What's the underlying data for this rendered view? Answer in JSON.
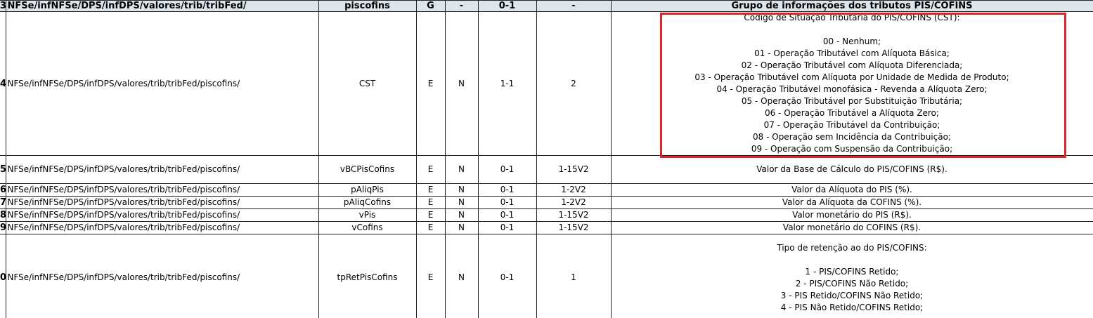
{
  "table": {
    "header": {
      "row_number": "3",
      "cells": [
        "NFSe/infNFSe/DPS/infDPS/valores/trib/tribFed/",
        "piscofins",
        "G",
        "-",
        "0-1",
        "-",
        "Grupo de informações dos tributos PIS/COFINS"
      ]
    },
    "rows": [
      {
        "row_number": "4",
        "cells": [
          "NFSe/infNFSe/DPS/infDPS/valores/trib/tribFed/piscofins/",
          "CST",
          "E",
          "N",
          "1-1",
          "2"
        ],
        "description_title": "Codigo de Situação Tributaria do PIS/COFINS (CST):",
        "description_items": [
          "00 - Nenhum;",
          "01 - Operação Tributável com Alíquota Básica;",
          "02 - Operação Tributável com Alíquota Diferenciada;",
          "03 - Operação Tributável com Alíquota por Unidade de Medida de Produto;",
          "04 - Operação Tributável monofásica - Revenda a Alíquota Zero;",
          "05 - Operação Tributável por Substituição Tributária;",
          "06 - Operação Tributável a Alíquota Zero;",
          "07 - Operação Tributável da Contribuição;",
          "08 - Operação sem Incidência da Contribuição;",
          "09 - Operação com Suspensão da Contribuição;"
        ]
      },
      {
        "row_number": "5",
        "cells": [
          "NFSe/infNFSe/DPS/infDPS/valores/trib/tribFed/piscofins/",
          "vBCPisCofins",
          "E",
          "N",
          "0-1",
          "1-15V2"
        ],
        "description": "Valor da Base de Cálculo do PIS/COFINS (R$)."
      },
      {
        "row_number": "6",
        "cells": [
          "NFSe/infNFSe/DPS/infDPS/valores/trib/tribFed/piscofins/",
          "pAliqPis",
          "E",
          "N",
          "0-1",
          "1-2V2"
        ],
        "description": "Valor da Alíquota do PIS (%)."
      },
      {
        "row_number": "7",
        "cells": [
          "NFSe/infNFSe/DPS/infDPS/valores/trib/tribFed/piscofins/",
          "pAliqCofins",
          "E",
          "N",
          "0-1",
          "1-2V2"
        ],
        "description": "Valor da Alíquota da COFINS (%)."
      },
      {
        "row_number": "8",
        "cells": [
          "NFSe/infNFSe/DPS/infDPS/valores/trib/tribFed/piscofins/",
          "vPis",
          "E",
          "N",
          "0-1",
          "1-15V2"
        ],
        "description": "Valor monetário do PIS (R$)."
      },
      {
        "row_number": "9",
        "cells": [
          "NFSe/infNFSe/DPS/infDPS/valores/trib/tribFed/piscofins/",
          "vCofins",
          "E",
          "N",
          "0-1",
          "1-15V2"
        ],
        "description": "Valor monetário do COFINS (R$)."
      },
      {
        "row_number": "0",
        "cells": [
          "NFSe/infNFSe/DPS/infDPS/valores/trib/tribFed/piscofins/",
          "tpRetPisCofins",
          "E",
          "N",
          "0-1",
          "1"
        ],
        "description_title": "Tipo de retenção ao do PIS/COFINS:",
        "description_items": [
          "1 - PIS/COFINS Retido;",
          "2 - PIS/COFINS Não Retido;",
          "3 - PIS Retido/COFINS Não Retido;",
          "4 - PIS Não Retido/COFINS Retido;"
        ]
      }
    ]
  }
}
